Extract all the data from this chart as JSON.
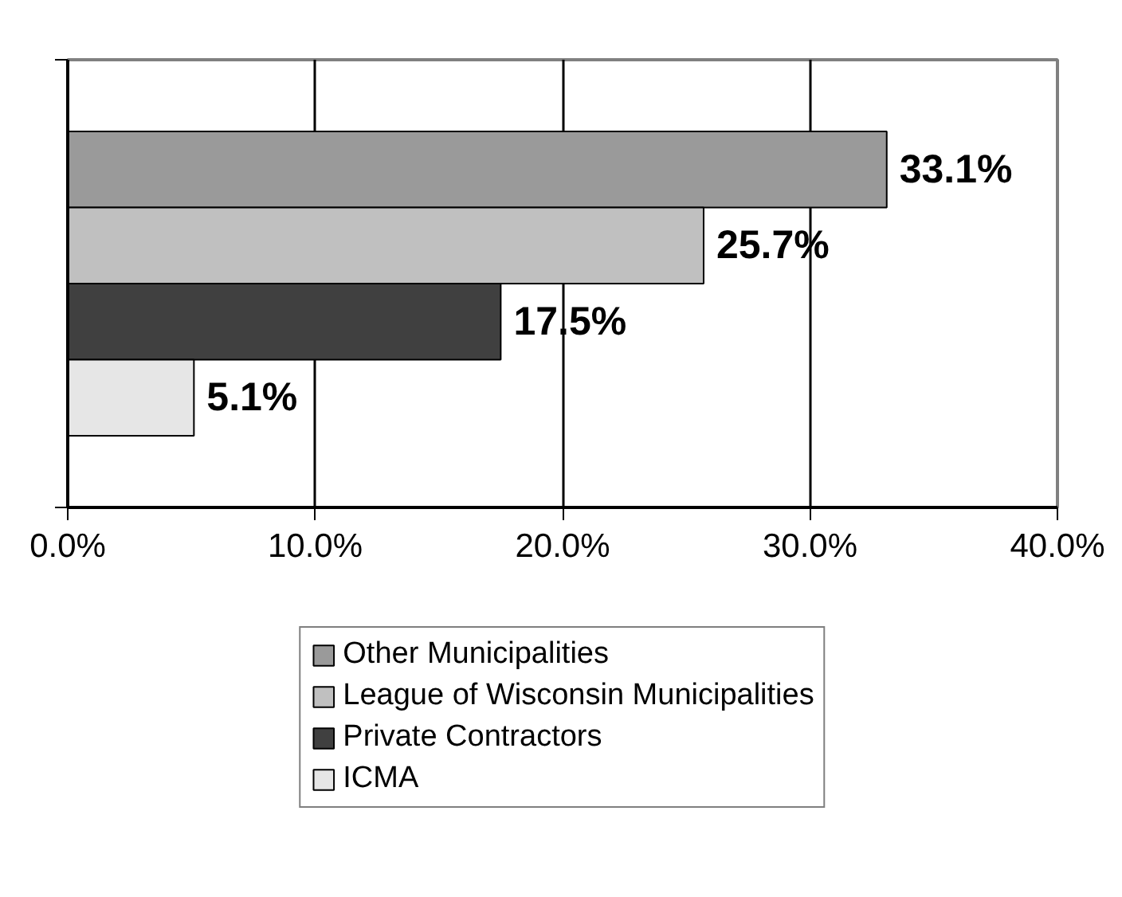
{
  "chart_data": {
    "type": "bar",
    "orientation": "horizontal",
    "categories": [
      null
    ],
    "series": [
      {
        "name": "Other Municipalities",
        "color": "#9a9a9a",
        "values": [
          33.1
        ]
      },
      {
        "name": "League of Wisconsin Municipalities",
        "color": "#c0c0c0",
        "values": [
          25.7
        ]
      },
      {
        "name": "Private Contractors",
        "color": "#404040",
        "values": [
          17.5
        ]
      },
      {
        "name": "ICMA",
        "color": "#e6e6e6",
        "values": [
          5.1
        ]
      }
    ],
    "xlim": [
      0,
      40
    ],
    "xticks": [
      {
        "value": 0,
        "label": "0.0%"
      },
      {
        "value": 10,
        "label": "10.0%"
      },
      {
        "value": 20,
        "label": "20.0%"
      },
      {
        "value": 30,
        "label": "30.0%"
      },
      {
        "value": 40,
        "label": "40.0%"
      }
    ],
    "value_labels": [
      "33.1%",
      "25.7%",
      "17.5%",
      "5.1%"
    ],
    "grid": "x",
    "legend": "bottom",
    "tick_labels": "x"
  }
}
